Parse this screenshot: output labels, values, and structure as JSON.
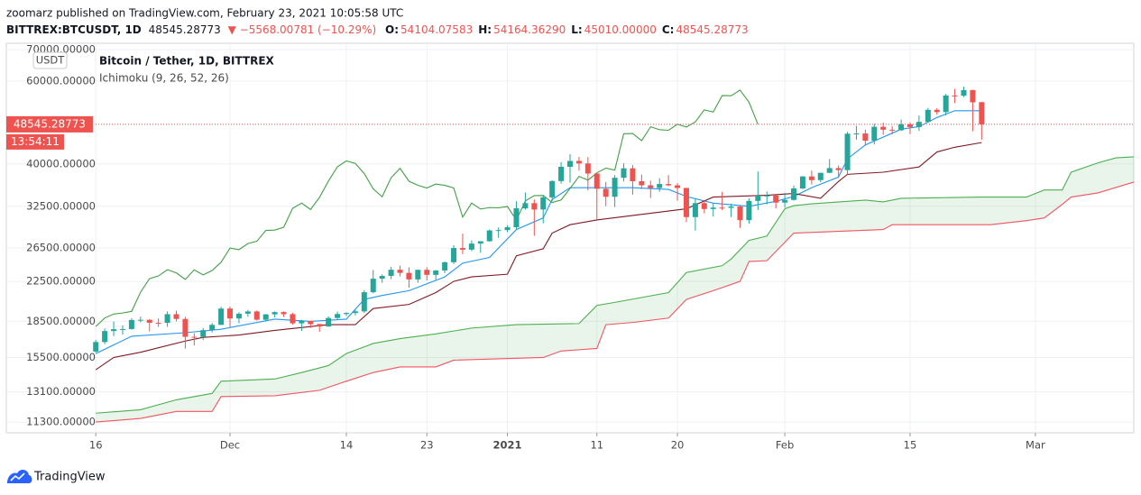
{
  "header": {
    "published": "zoomarz published on TradingView.com, February 23, 2021 10:05:58 UTC",
    "symbol": "BITTREX:BTCUSDT, 1D",
    "last": "48545.28773",
    "change": "▼ −5568.00781 (−10.29%)",
    "ohlc": [
      {
        "label": "O:",
        "value": "54104.07583"
      },
      {
        "label": "H:",
        "value": "54164.36290"
      },
      {
        "label": "L:",
        "value": "45010.00000"
      },
      {
        "label": "C:",
        "value": "48545.28773"
      }
    ]
  },
  "footer": {
    "brand": "TradingView"
  },
  "chart_data": {
    "type": "candlestick",
    "title": "Bitcoin / Tether, 1D, BITTREX",
    "subtitle": "Ichimoku (9, 26, 52, 26)",
    "unit": "USDT",
    "log_scale": true,
    "grid": true,
    "up_color": "#26a69a",
    "down_color": "#ef5350",
    "last_price": 48545.28773,
    "countdown": "13:54:11",
    "last_price_color": "#ef5350",
    "xlim": [
      "2020-11-06",
      "2021-03-12"
    ],
    "xticks": [
      {
        "value": "2020-11-16",
        "label": "16"
      },
      {
        "value": "2020-12-01",
        "label": "Dec"
      },
      {
        "value": "2020-12-14",
        "label": "14"
      },
      {
        "value": "2020-12-23",
        "label": "23"
      },
      {
        "value": "2021-01-01",
        "label": "2021"
      },
      {
        "value": "2021-01-11",
        "label": "11"
      },
      {
        "value": "2021-01-20",
        "label": "20"
      },
      {
        "value": "2021-02-01",
        "label": "Feb"
      },
      {
        "value": "2021-02-15",
        "label": "15"
      },
      {
        "value": "2021-03-01",
        "label": "Mar"
      }
    ],
    "ylim": [
      10720,
      72200
    ],
    "yticks": [
      {
        "value": 70000,
        "label": "70000.00000"
      },
      {
        "value": 60000,
        "label": "60000.00000"
      },
      {
        "value": 40000,
        "label": "40000.00000"
      },
      {
        "value": 32500,
        "label": "32500.00000"
      },
      {
        "value": 26500,
        "label": "26500.00000"
      },
      {
        "value": 22500,
        "label": "22500.00000"
      },
      {
        "value": 18500,
        "label": "18500.00000"
      },
      {
        "value": 15500,
        "label": "15500.00000"
      },
      {
        "value": 13100,
        "label": "13100.00000"
      },
      {
        "value": 11300,
        "label": "11300.00000"
      }
    ],
    "x": [
      "2020-11-16",
      "2020-11-17",
      "2020-11-18",
      "2020-11-19",
      "2020-11-20",
      "2020-11-21",
      "2020-11-22",
      "2020-11-23",
      "2020-11-24",
      "2020-11-25",
      "2020-11-26",
      "2020-11-27",
      "2020-11-28",
      "2020-11-29",
      "2020-11-30",
      "2020-12-01",
      "2020-12-02",
      "2020-12-03",
      "2020-12-04",
      "2020-12-05",
      "2020-12-06",
      "2020-12-07",
      "2020-12-08",
      "2020-12-09",
      "2020-12-10",
      "2020-12-11",
      "2020-12-12",
      "2020-12-13",
      "2020-12-14",
      "2020-12-15",
      "2020-12-16",
      "2020-12-17",
      "2020-12-18",
      "2020-12-19",
      "2020-12-20",
      "2020-12-21",
      "2020-12-22",
      "2020-12-23",
      "2020-12-24",
      "2020-12-25",
      "2020-12-26",
      "2020-12-27",
      "2020-12-28",
      "2020-12-29",
      "2020-12-30",
      "2020-12-31",
      "2021-01-01",
      "2021-01-02",
      "2021-01-03",
      "2021-01-04",
      "2021-01-05",
      "2021-01-06",
      "2021-01-07",
      "2021-01-08",
      "2021-01-09",
      "2021-01-10",
      "2021-01-11",
      "2021-01-12",
      "2021-01-13",
      "2021-01-14",
      "2021-01-15",
      "2021-01-16",
      "2021-01-17",
      "2021-01-18",
      "2021-01-19",
      "2021-01-20",
      "2021-01-21",
      "2021-01-22",
      "2021-01-23",
      "2021-01-24",
      "2021-01-25",
      "2021-01-26",
      "2021-01-27",
      "2021-01-28",
      "2021-01-29",
      "2021-01-30",
      "2021-01-31",
      "2021-02-01",
      "2021-02-02",
      "2021-02-03",
      "2021-02-04",
      "2021-02-05",
      "2021-02-06",
      "2021-02-07",
      "2021-02-08",
      "2021-02-09",
      "2021-02-10",
      "2021-02-11",
      "2021-02-12",
      "2021-02-13",
      "2021-02-14",
      "2021-02-15",
      "2021-02-16",
      "2021-02-17",
      "2021-02-18",
      "2021-02-19",
      "2021-02-20",
      "2021-02-21",
      "2021-02-22",
      "2021-02-23"
    ],
    "open": [
      15957,
      16719,
      17645,
      17804,
      17817,
      18621,
      18642,
      18370,
      18364,
      19160,
      18720,
      17150,
      17139,
      17719,
      18185,
      19696,
      18765,
      19205,
      19421,
      18650,
      19147,
      19359,
      19166,
      18324,
      18541,
      18254,
      18036,
      18808,
      19175,
      19273,
      19426,
      21335,
      22797,
      23107,
      23821,
      23455,
      22719,
      23810,
      23232,
      23729,
      24712,
      26493,
      26281,
      27079,
      27385,
      28875,
      28923,
      29332,
      32178,
      33000,
      31989,
      33949,
      36770,
      39432,
      40582,
      40088,
      38150,
      35404,
      34051,
      37371,
      39144,
      36742,
      36018,
      35547,
      36248,
      36013,
      35547,
      30825,
      33005,
      32067,
      32289,
      32254,
      32467,
      30366,
      33364,
      34252,
      34262,
      33092,
      33526,
      35466,
      37618,
      36936,
      38290,
      39186,
      38795,
      46374,
      46420,
      44807,
      47969,
      47287,
      47153,
      48577,
      47911,
      49133,
      52119,
      51552,
      55906,
      55841,
      57408,
      54104.07583
    ],
    "high": [
      16880,
      17860,
      18476,
      18143,
      18786,
      18936,
      18700,
      18770,
      19418,
      19484,
      18915,
      17457,
      17900,
      18360,
      19863,
      19888,
      19342,
      19566,
      19511,
      19177,
      19420,
      19420,
      19294,
      18639,
      18557,
      18292,
      18948,
      19411,
      19350,
      19570,
      21560,
      23800,
      23285,
      24171,
      24295,
      24102,
      23837,
      24100,
      23789,
      24789,
      26867,
      28422,
      27500,
      27400,
      28999,
      29300,
      29600,
      33300,
      34778,
      33600,
      34360,
      36939,
      40365,
      41950,
      41380,
      41350,
      38264,
      36628,
      37850,
      40100,
      39747,
      37950,
      36852,
      37299,
      37850,
      36415,
      35600,
      33826,
      33456,
      32945,
      34875,
      32921,
      32557,
      33783,
      38531,
      34933,
      34342,
      34717,
      35984,
      37662,
      38708,
      38310,
      40955,
      39700,
      46794,
      48200,
      47310,
      48678,
      48985,
      48150,
      49707,
      49010,
      50689,
      52618,
      52530,
      56368,
      57767,
      58352,
      57533,
      54164.3629
    ],
    "low": [
      15870,
      16550,
      17214,
      17333,
      17762,
      18400,
      17610,
      18000,
      18018,
      18500,
      16188,
      16438,
      16886,
      17517,
      18185,
      18001,
      18330,
      18925,
      18571,
      18500,
      18857,
      18902,
      18200,
      17650,
      17911,
      17572,
      18020,
      18711,
      19000,
      19050,
      19278,
      21230,
      22350,
      22750,
      23060,
      21815,
      22353,
      22600,
      22703,
      23433,
      24500,
      25700,
      26101,
      25880,
      27320,
      27850,
      28624,
      28946,
      31962,
      28130,
      29900,
      33288,
      36300,
      36500,
      38720,
      35111,
      30420,
      32531,
      32380,
      36701,
      34408,
      35357,
      33850,
      34883,
      35844,
      33400,
      30071,
      28850,
      31390,
      30900,
      31900,
      30837,
      29241,
      29842,
      31915,
      32825,
      32171,
      32296,
      33418,
      35362,
      36161,
      36570,
      38215,
      37351,
      37988,
      45020,
      43727,
      43995,
      46125,
      46202,
      47014,
      46300,
      47003,
      48947,
      50901,
      50710,
      53863,
      55477,
      46924,
      45010
    ],
    "close": [
      16719,
      17645,
      17804,
      17817,
      18621,
      18642,
      18370,
      18364,
      19160,
      18720,
      17150,
      17139,
      17719,
      18185,
      19696,
      18765,
      19205,
      19421,
      18650,
      19147,
      19359,
      19166,
      18324,
      18541,
      18254,
      18036,
      18808,
      19175,
      19273,
      19426,
      21335,
      22797,
      23107,
      23821,
      23455,
      22719,
      23810,
      23232,
      23729,
      24712,
      26493,
      26281,
      27079,
      27385,
      28875,
      28923,
      29332,
      32178,
      33000,
      31989,
      33949,
      36770,
      39432,
      40582,
      40088,
      38150,
      35404,
      34051,
      37371,
      39144,
      36742,
      36018,
      35547,
      36248,
      36013,
      35547,
      30825,
      33005,
      32067,
      32289,
      32254,
      32467,
      30366,
      33364,
      34252,
      34262,
      33092,
      33526,
      35466,
      37618,
      36936,
      38290,
      39186,
      38795,
      46374,
      46420,
      44807,
      47969,
      47287,
      47153,
      48577,
      47911,
      49133,
      52119,
      51552,
      55906,
      55841,
      57408,
      54087,
      48545.28773
    ],
    "cloud": {
      "series": [
        3,
        4
      ],
      "color": "rgba(76,175,80,0.12)"
    },
    "series": [
      {
        "color": "#2196f3",
        "x": [
          "2020-11-16",
          "2020-11-20",
          "2020-11-26",
          "2020-11-30",
          "2020-12-06",
          "2020-12-10",
          "2020-12-14",
          "2020-12-16",
          "2020-12-18",
          "2020-12-21",
          "2020-12-25",
          "2020-12-27",
          "2020-12-30",
          "2021-01-02",
          "2021-01-05",
          "2021-01-06",
          "2021-01-08",
          "2021-01-15",
          "2021-01-19",
          "2021-01-21",
          "2021-01-24",
          "2021-01-28",
          "2021-01-31",
          "2021-02-02",
          "2021-02-04",
          "2021-02-07",
          "2021-02-08",
          "2021-02-10",
          "2021-02-14",
          "2021-02-16",
          "2021-02-18",
          "2021-02-20",
          "2021-02-23"
        ],
        "values": [
          15800,
          17200,
          17500,
          17800,
          18700,
          18500,
          18700,
          20600,
          21000,
          21500,
          23000,
          24600,
          25300,
          29000,
          30700,
          33600,
          35600,
          35600,
          35300,
          34100,
          33000,
          32500,
          33300,
          34100,
          35600,
          37500,
          41000,
          43900,
          47400,
          48000,
          50200,
          51900,
          51900
        ]
      },
      {
        "color": "#801922",
        "x": [
          "2020-11-16",
          "2020-11-18",
          "2020-11-21",
          "2020-11-26",
          "2020-11-28",
          "2020-12-02",
          "2020-12-06",
          "2020-12-12",
          "2020-12-15",
          "2020-12-17",
          "2020-12-21",
          "2020-12-24",
          "2020-12-26",
          "2020-12-28",
          "2021-01-01",
          "2021-01-02",
          "2021-01-05",
          "2021-01-06",
          "2021-01-08",
          "2021-01-11",
          "2021-01-21",
          "2021-01-24",
          "2021-01-30",
          "2021-02-02",
          "2021-02-05",
          "2021-02-07",
          "2021-02-08",
          "2021-02-12",
          "2021-02-16",
          "2021-02-18",
          "2021-02-20",
          "2021-02-23"
        ],
        "values": [
          14600,
          15500,
          15900,
          16800,
          17100,
          17300,
          17700,
          18200,
          18200,
          19700,
          20100,
          21300,
          22500,
          23000,
          23300,
          25500,
          26400,
          28500,
          29700,
          30400,
          32100,
          34000,
          34300,
          34600,
          33800,
          36700,
          38000,
          38400,
          39400,
          42400,
          43400,
          44400
        ]
      },
      {
        "color": "#43a047",
        "x": [
          "2020-11-16",
          "2020-11-17",
          "2020-11-18",
          "2020-11-19",
          "2020-11-20",
          "2020-11-21",
          "2020-11-22",
          "2020-11-23",
          "2020-11-24",
          "2020-11-25",
          "2020-11-26",
          "2020-11-27",
          "2020-11-28",
          "2020-11-29",
          "2020-11-30",
          "2020-12-01",
          "2020-12-02",
          "2020-12-03",
          "2020-12-04",
          "2020-12-05",
          "2020-12-06",
          "2020-12-07",
          "2020-12-08",
          "2020-12-09",
          "2020-12-10",
          "2020-12-11",
          "2020-12-12",
          "2020-12-13",
          "2020-12-14",
          "2020-12-15",
          "2020-12-16",
          "2020-12-17",
          "2020-12-18",
          "2020-12-19",
          "2020-12-20",
          "2020-12-21",
          "2020-12-22",
          "2020-12-23",
          "2020-12-24",
          "2020-12-25",
          "2020-12-26",
          "2020-12-27",
          "2020-12-28",
          "2020-12-29",
          "2020-12-30",
          "2020-12-31",
          "2021-01-01",
          "2021-01-02",
          "2021-01-03",
          "2021-01-04",
          "2021-01-05",
          "2021-01-06",
          "2021-01-07",
          "2021-01-08",
          "2021-01-09",
          "2021-01-10",
          "2021-01-11",
          "2021-01-12",
          "2021-01-13",
          "2021-01-14",
          "2021-01-15",
          "2021-01-16",
          "2021-01-17",
          "2021-01-18",
          "2021-01-19",
          "2021-01-20",
          "2021-01-21",
          "2021-01-22",
          "2021-01-23",
          "2021-01-24",
          "2021-01-25",
          "2021-01-26",
          "2021-01-27",
          "2021-01-28",
          "2021-01-29"
        ],
        "values": [
          18036,
          18808,
          19175,
          19273,
          19426,
          21335,
          22797,
          23107,
          23821,
          23455,
          22719,
          23810,
          23232,
          23729,
          24712,
          26493,
          26281,
          27079,
          27385,
          28875,
          28923,
          29332,
          32178,
          33000,
          31989,
          33949,
          36770,
          39432,
          40582,
          40088,
          38150,
          35404,
          34051,
          37371,
          39144,
          36742,
          36018,
          35547,
          36248,
          36013,
          35547,
          30825,
          33005,
          32067,
          32289,
          32254,
          32467,
          30366,
          33364,
          34252,
          34262,
          33092,
          33526,
          35466,
          37618,
          36936,
          38290,
          39186,
          38795,
          46374,
          46420,
          44807,
          47969,
          47287,
          47153,
          48577,
          47911,
          49133,
          52119,
          51552,
          55906,
          55841,
          57408,
          54087,
          48545.28773
        ]
      },
      {
        "color": "#4caf50",
        "x": [
          "2020-11-16",
          "2020-11-21",
          "2020-11-25",
          "2020-11-29",
          "2020-11-30",
          "2020-12-06",
          "2020-12-09",
          "2020-12-12",
          "2020-12-14",
          "2020-12-17",
          "2020-12-20",
          "2020-12-24",
          "2020-12-28",
          "2021-01-02",
          "2021-01-09",
          "2021-01-11",
          "2021-01-13",
          "2021-01-19",
          "2021-01-21",
          "2021-01-25",
          "2021-01-26",
          "2021-01-28",
          "2021-01-30",
          "2021-02-01",
          "2021-02-02",
          "2021-02-04",
          "2021-02-10",
          "2021-02-12",
          "2021-02-14",
          "2021-02-23",
          "2021-02-28",
          "2021-03-02",
          "2021-03-04",
          "2021-03-05",
          "2021-03-08",
          "2021-03-10",
          "2021-03-12"
        ],
        "values": [
          11800,
          12000,
          12600,
          13000,
          13800,
          13950,
          14400,
          14900,
          15800,
          16600,
          17000,
          17400,
          17900,
          18200,
          18300,
          20000,
          20300,
          21300,
          23500,
          24300,
          25100,
          27500,
          28100,
          32100,
          32600,
          32900,
          33500,
          33200,
          33800,
          34000,
          34000,
          35200,
          35200,
          38400,
          40200,
          41200,
          41400
        ]
      },
      {
        "color": "#f7525f",
        "x": [
          "2020-11-16",
          "2020-11-21",
          "2020-11-25",
          "2020-11-29",
          "2020-11-30",
          "2020-12-06",
          "2020-12-11",
          "2020-12-14",
          "2020-12-17",
          "2020-12-20",
          "2020-12-24",
          "2020-12-26",
          "2021-01-05",
          "2021-01-07",
          "2021-01-11",
          "2021-01-12",
          "2021-01-15",
          "2021-01-19",
          "2021-01-21",
          "2021-01-24",
          "2021-01-27",
          "2021-01-28",
          "2021-01-30",
          "2021-02-02",
          "2021-02-12",
          "2021-02-13",
          "2021-02-24",
          "2021-02-28",
          "2021-03-02",
          "2021-03-04",
          "2021-03-05",
          "2021-03-08",
          "2021-03-12"
        ],
        "values": [
          11300,
          11500,
          11900,
          11900,
          12800,
          12850,
          13200,
          13800,
          14400,
          14800,
          14800,
          15300,
          15500,
          16000,
          16200,
          18200,
          18400,
          18800,
          20600,
          21500,
          22500,
          24800,
          24900,
          28500,
          29000,
          29700,
          29700,
          30300,
          30700,
          32800,
          34000,
          34700,
          36600
        ]
      }
    ]
  }
}
